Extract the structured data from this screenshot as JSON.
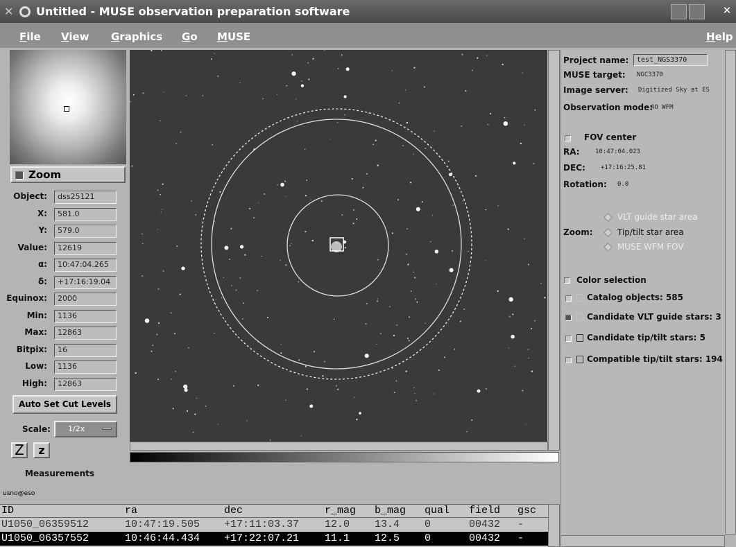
{
  "window": {
    "title": "Untitled - MUSE observation preparation software"
  },
  "menu": {
    "items": [
      "File",
      "View",
      "Graphics",
      "Go",
      "MUSE"
    ],
    "help": "Help"
  },
  "left_panel": {
    "zoom": "Zoom",
    "fields": [
      {
        "label": "Object:",
        "value": "dss25121"
      },
      {
        "label": "X:",
        "value": "581.0"
      },
      {
        "label": "Y:",
        "value": "579.0"
      },
      {
        "label": "Value:",
        "value": "12619"
      },
      {
        "label": "α:",
        "value": "10:47:04.265"
      },
      {
        "label": "δ:",
        "value": "+17:16:19.04"
      },
      {
        "label": "Equinox:",
        "value": "2000"
      },
      {
        "label": "Min:",
        "value": "1136"
      },
      {
        "label": "Max:",
        "value": "12863"
      },
      {
        "label": "Bitpix:",
        "value": "16"
      },
      {
        "label": "Low:",
        "value": "1136"
      },
      {
        "label": "High:",
        "value": "12863"
      }
    ],
    "cut_button": "Auto Set Cut Levels",
    "scale_label": "Scale:",
    "scale_value": "1/2x",
    "z_buttons": [
      "Z",
      "z"
    ]
  },
  "right_panel": {
    "info": [
      {
        "label": "Project name:",
        "value": "test_NGS3370"
      },
      {
        "label": "MUSE target:",
        "value": "NGC3370"
      },
      {
        "label": "Image server:",
        "value": "Digitized Sky at ES"
      },
      {
        "label": "Observation mode:",
        "value": "AO WFM"
      }
    ],
    "fov_center": "FOV center",
    "coords": [
      {
        "label": "RA:",
        "value": "10:47:04.023"
      },
      {
        "label": "DEC:",
        "value": "+17:16:25.81"
      },
      {
        "label": "Rotation:",
        "value": "0.0"
      }
    ],
    "zoom_label": "Zoom:",
    "zoom_options": [
      "VLT guide star area",
      "Tip/tilt star area",
      "MUSE WFM FOV"
    ],
    "color_selection": "Color selection",
    "selections": [
      "Catalog objects: 585",
      "Candidate VLT guide stars: 3",
      "Candidate tip/tilt stars: 5",
      "Compatible tip/tilt stars: 194"
    ]
  },
  "measurements": {
    "title": "Measurements",
    "source": "usno@eso",
    "table": {
      "columns": [
        "ID",
        "ra",
        "dec",
        "r_mag",
        "b_mag",
        "qual",
        "field",
        "gsc"
      ],
      "rows": [
        [
          "U1050_06359512",
          "10:47:19.505",
          "+17:11:03.37",
          "12.0",
          "13.4",
          "0",
          "00432",
          "-"
        ],
        [
          "U1050_06357552",
          "10:46:44.434",
          "+17:22:07.21",
          "11.1",
          "12.5",
          "0",
          "00432",
          "-"
        ]
      ]
    }
  }
}
